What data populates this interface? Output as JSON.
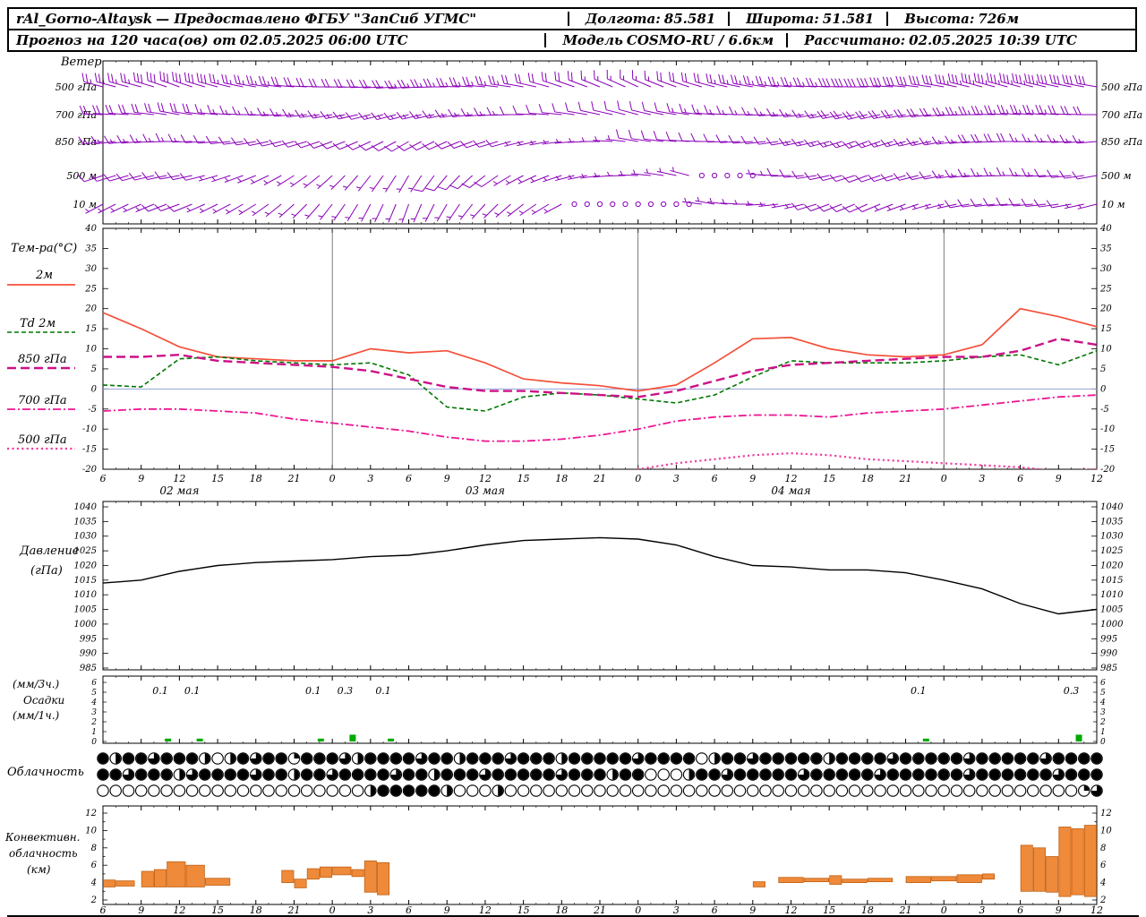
{
  "header": {
    "station": "rAl_Gorno-Altaysk",
    "provider": "— Предоставлено ФГБУ \"ЗапСиб УГМС\"",
    "lon_label": "Долгота:",
    "lon": "85.581",
    "lat_label": "Широта:",
    "lat": "51.581",
    "alt_label": "Высота:",
    "alt": "726м",
    "forecast_label": "Прогноз на 120 часа(ов) от",
    "forecast_time": "02.05.2025 06:00 UTC",
    "model_label": "Модель",
    "model": "COSMO-RU / 6.6км",
    "calc_label": "Рассчитано:",
    "calc_time": "02.05.2025 10:39 UTC"
  },
  "labels": {
    "wind_title": "Ветер",
    "temp_title": "Тем-ра(°C)",
    "pressure_line1": "Давление",
    "pressure_line2": "(гПа)",
    "precip_line1": "(мм/3ч.)",
    "precip_line2": "Осадки",
    "precip_line3": "(мм/1ч.)",
    "cloud_title": "Облачность",
    "conv_line1": "Конвективн.",
    "conv_line2": "облачность",
    "conv_line3": "(км)"
  },
  "colors": {
    "wind": "#8a00b8",
    "precip": "#00aa00",
    "convective": "#ef8a3a",
    "convective_border": "#c06012",
    "zero_line": "#95a2d8"
  },
  "x_axis": {
    "hour_labels": [
      "6",
      "9",
      "12",
      "15",
      "18",
      "21",
      "0",
      "3",
      "6",
      "9",
      "12",
      "15",
      "18",
      "21",
      "0",
      "3",
      "6",
      "9",
      "12",
      "15",
      "18",
      "21",
      "0",
      "3",
      "6",
      "9",
      "12"
    ],
    "day_labels": [
      {
        "text": "02 мая",
        "tick": 2
      },
      {
        "text": "03 мая",
        "tick": 10
      },
      {
        "text": "04 мая",
        "tick": 18
      }
    ]
  },
  "chart_data": [
    {
      "id": "wind",
      "type": "scatter",
      "title": "Ветер (барбы, узлы)",
      "x_step_hours": 3,
      "levels": [
        {
          "label": "500 гПа",
          "dirs_deg": [
            285,
            285,
            290,
            285,
            280,
            275,
            270,
            268,
            265,
            270,
            275,
            280,
            288,
            292,
            295,
            290,
            285,
            280,
            275,
            272,
            270,
            275,
            280,
            285,
            285,
            282,
            280
          ],
          "speeds_kt": [
            25,
            27,
            30,
            28,
            25,
            22,
            20,
            20,
            23,
            25,
            25,
            22,
            20,
            17,
            15,
            18,
            22,
            25,
            25,
            27,
            30,
            30,
            32,
            35,
            35,
            32,
            30
          ]
        },
        {
          "label": "700 гПа",
          "dirs_deg": [
            272,
            275,
            280,
            276,
            270,
            265,
            260,
            256,
            255,
            260,
            265,
            270,
            276,
            282,
            285,
            280,
            275,
            270,
            265,
            260,
            256,
            260,
            265,
            270,
            274,
            274,
            270
          ],
          "speeds_kt": [
            20,
            20,
            20,
            17,
            15,
            15,
            14,
            12,
            14,
            15,
            15,
            12,
            10,
            10,
            10,
            12,
            14,
            15,
            15,
            17,
            20,
            20,
            22,
            25,
            25,
            23,
            20
          ]
        },
        {
          "label": "850 гПа",
          "dirs_deg": [
            262,
            265,
            270,
            265,
            260,
            255,
            250,
            245,
            240,
            246,
            252,
            256,
            262,
            270,
            280,
            276,
            270,
            265,
            260,
            255,
            250,
            255,
            260,
            266,
            270,
            268,
            265
          ],
          "speeds_kt": [
            15,
            15,
            14,
            10,
            10,
            10,
            10,
            9,
            9,
            10,
            10,
            7,
            5,
            5,
            8,
            10,
            10,
            10,
            12,
            14,
            15,
            15,
            16,
            18,
            18,
            16,
            15
          ]
        },
        {
          "label": "500 м",
          "dirs_deg": [
            252,
            255,
            260,
            254,
            248,
            238,
            228,
            218,
            210,
            220,
            232,
            242,
            252,
            262,
            272,
            282,
            290,
            280,
            268,
            258,
            250,
            254,
            260,
            266,
            270,
            266,
            260
          ],
          "speeds_kt": [
            10,
            10,
            10,
            7,
            6,
            5,
            5,
            5,
            6,
            9,
            9,
            6,
            5,
            4,
            3,
            4,
            0,
            0,
            8,
            10,
            10,
            10,
            12,
            14,
            14,
            12,
            10
          ]
        },
        {
          "label": "10 м",
          "dirs_deg": [
            242,
            246,
            250,
            244,
            238,
            228,
            218,
            208,
            200,
            210,
            222,
            232,
            242,
            252,
            262,
            272,
            280,
            270,
            260,
            250,
            246,
            250,
            256,
            262,
            266,
            262,
            256
          ],
          "speeds_kt": [
            5,
            6,
            9,
            6,
            5,
            5,
            4,
            4,
            4,
            5,
            5,
            4,
            3,
            0,
            0,
            0,
            4,
            5,
            6,
            9,
            9,
            6,
            6,
            9,
            10,
            9,
            6
          ]
        }
      ]
    },
    {
      "id": "temperature",
      "type": "line",
      "title": "Тем-ра(°C)",
      "ylim": [
        -20,
        40
      ],
      "yticks": [
        40,
        35,
        30,
        25,
        20,
        15,
        10,
        5,
        0,
        -5,
        -10,
        -15,
        -20
      ],
      "x_step_hours": 3,
      "series": [
        {
          "name": "2м",
          "color": "#f4503a",
          "style": "solid",
          "values": [
            19,
            15,
            10.5,
            8,
            7.5,
            7,
            7,
            10,
            9,
            9.5,
            6.5,
            2.5,
            1.5,
            0.8,
            -0.5,
            1,
            6.5,
            12.5,
            12.8,
            10,
            8.5,
            8,
            8.5,
            11,
            20,
            18,
            15.5
          ]
        },
        {
          "name": "Td 2м",
          "color": "#007700",
          "style": "dashed",
          "values": [
            1,
            0.5,
            7.5,
            8,
            7,
            6.5,
            6,
            6.5,
            3.5,
            -4.5,
            -5.5,
            -2,
            -1,
            -1.5,
            -2.5,
            -3.5,
            -1.5,
            3,
            7,
            6.5,
            6.5,
            6.5,
            7,
            8,
            8.5,
            6,
            9.5
          ]
        },
        {
          "name": "850 гПа",
          "color": "#cc1188",
          "style": "longdash",
          "values": [
            8,
            8,
            8.5,
            7,
            6.5,
            6,
            5.5,
            4.5,
            2.5,
            0.5,
            -0.5,
            -0.5,
            -1,
            -1.5,
            -2,
            -0.5,
            2,
            4.5,
            6,
            6.5,
            7,
            7.5,
            8,
            8,
            9.5,
            12.5,
            11
          ]
        },
        {
          "name": "700 гПа",
          "color": "#ee1493",
          "style": "dashdot",
          "values": [
            -5.5,
            -5,
            -5,
            -5.5,
            -6,
            -7.5,
            -8.5,
            -9.5,
            -10.5,
            -12,
            -13,
            -13,
            -12.5,
            -11.5,
            -10,
            -8,
            -7,
            -6.5,
            -6.5,
            -7,
            -6,
            -5.5,
            -5,
            -4,
            -3,
            -2,
            -1.5
          ]
        },
        {
          "name": "500 гПа",
          "color": "#ee3fa0",
          "style": "dotted",
          "values": [
            -23,
            -23,
            -23,
            -23,
            -24,
            -24,
            -25,
            -25,
            -26,
            -26,
            -25,
            -24,
            -23,
            -22,
            -20,
            -18.5,
            -17.5,
            -16.5,
            -16,
            -16.5,
            -17.5,
            -18,
            -18.5,
            -19,
            -19.5,
            -20.5,
            -20
          ]
        }
      ]
    },
    {
      "id": "pressure",
      "type": "line",
      "ylabel": "Давление (гПа)",
      "ylim": [
        985,
        1040
      ],
      "yticks": [
        1040,
        1035,
        1030,
        1025,
        1020,
        1015,
        1010,
        1005,
        1000,
        995,
        990,
        985
      ],
      "x_step_hours": 3,
      "values": [
        1014,
        1015,
        1018,
        1020,
        1021,
        1021.5,
        1022,
        1023,
        1023.5,
        1025,
        1027,
        1028.5,
        1029,
        1029.5,
        1029,
        1027,
        1023,
        1020,
        1019.5,
        1018.5,
        1018.5,
        1017.5,
        1015,
        1012,
        1007,
        1003.5,
        1005
      ]
    },
    {
      "id": "precipitation",
      "type": "bar",
      "ylabel": "Осадки (мм/3ч., мм/1ч.)",
      "ylim": [
        0,
        6
      ],
      "yticks": [
        6,
        5,
        4,
        3,
        2,
        1,
        0
      ],
      "events": [
        {
          "hour": 4.5,
          "value": 0.1
        },
        {
          "hour": 7,
          "value": 0.1
        },
        {
          "hour": 16.5,
          "value": 0.1
        },
        {
          "hour": 19,
          "value": 0.3
        },
        {
          "hour": 22,
          "value": 0.1
        },
        {
          "hour": 64,
          "value": 0.1
        },
        {
          "hour": 76,
          "value": 0.3
        }
      ]
    },
    {
      "id": "cloud",
      "type": "heatmap",
      "title": "Облачность (октанты, 3 яруса, почасово)",
      "rows": [
        {
          "oktas": [
            8,
            4,
            8,
            8,
            6,
            8,
            8,
            8,
            4,
            0,
            4,
            8,
            6,
            8,
            8,
            2,
            8,
            8,
            8,
            6,
            4,
            8,
            8,
            8,
            8,
            6,
            8,
            8,
            4,
            8,
            8,
            8,
            6,
            8,
            8,
            8,
            4,
            8,
            8,
            8,
            8,
            8,
            6,
            8,
            8,
            8,
            8,
            0,
            4,
            8,
            8,
            6,
            8,
            8,
            8,
            8,
            8,
            4,
            8,
            8,
            8,
            8,
            6,
            8,
            8,
            8,
            8,
            8,
            6,
            8,
            8,
            8,
            8,
            8,
            6,
            8,
            8,
            8,
            8
          ]
        },
        {
          "oktas": [
            8,
            8,
            6,
            8,
            8,
            8,
            4,
            6,
            8,
            8,
            8,
            8,
            6,
            8,
            8,
            4,
            8,
            8,
            6,
            8,
            8,
            8,
            8,
            6,
            8,
            8,
            4,
            8,
            8,
            8,
            6,
            8,
            8,
            8,
            8,
            8,
            6,
            8,
            8,
            8,
            4,
            8,
            8,
            0,
            0,
            0,
            4,
            8,
            8,
            6,
            8,
            8,
            8,
            8,
            8,
            6,
            8,
            8,
            8,
            8,
            8,
            6,
            8,
            8,
            8,
            8,
            8,
            8,
            6,
            8,
            8,
            8,
            8,
            8,
            8,
            6,
            8,
            8,
            8
          ]
        },
        {
          "oktas": [
            0,
            0,
            0,
            0,
            0,
            0,
            0,
            0,
            0,
            0,
            0,
            0,
            0,
            0,
            0,
            0,
            0,
            0,
            0,
            0,
            0,
            4,
            8,
            8,
            8,
            8,
            8,
            4,
            0,
            0,
            0,
            4,
            0,
            0,
            0,
            0,
            0,
            0,
            0,
            0,
            0,
            0,
            0,
            0,
            0,
            0,
            0,
            0,
            0,
            0,
            0,
            0,
            0,
            0,
            0,
            0,
            0,
            0,
            0,
            0,
            0,
            0,
            0,
            0,
            0,
            0,
            0,
            0,
            0,
            0,
            0,
            0,
            0,
            0,
            0,
            0,
            0,
            2,
            6
          ]
        }
      ]
    },
    {
      "id": "convective",
      "type": "bar",
      "title": "Конвективная облачность (км)",
      "ylim": [
        2,
        12
      ],
      "yticks": [
        12,
        10,
        8,
        6,
        4,
        2
      ],
      "bars": [
        [
          0,
          1,
          3.5,
          4.3
        ],
        [
          1,
          2.5,
          3.6,
          4.2
        ],
        [
          3,
          4,
          3.5,
          5.3
        ],
        [
          4,
          5,
          3.5,
          5.5
        ],
        [
          5,
          6.5,
          3.5,
          6.4
        ],
        [
          6.5,
          8,
          3.5,
          6.0
        ],
        [
          8,
          10,
          3.7,
          4.5
        ],
        [
          14,
          15,
          4.0,
          5.4
        ],
        [
          15,
          16,
          3.4,
          4.4
        ],
        [
          16,
          17,
          4.4,
          5.6
        ],
        [
          17,
          18,
          4.6,
          5.8
        ],
        [
          18,
          19.5,
          4.9,
          5.8
        ],
        [
          19.5,
          20.5,
          4.7,
          5.5
        ],
        [
          20.5,
          21.5,
          2.9,
          6.5
        ],
        [
          21.5,
          22.5,
          2.6,
          6.3
        ],
        [
          51,
          52,
          3.5,
          4.1
        ],
        [
          53,
          55,
          4.0,
          4.6
        ],
        [
          55,
          57,
          4.1,
          4.5
        ],
        [
          57,
          58,
          3.8,
          4.8
        ],
        [
          58,
          60,
          4.0,
          4.4
        ],
        [
          60,
          62,
          4.1,
          4.5
        ],
        [
          63,
          65,
          4.0,
          4.7
        ],
        [
          65,
          67,
          4.2,
          4.7
        ],
        [
          67,
          69,
          4.0,
          4.9
        ],
        [
          69,
          70,
          4.4,
          5.0
        ],
        [
          72,
          73,
          3.0,
          8.3
        ],
        [
          73,
          74,
          3.0,
          8.0
        ],
        [
          74,
          75,
          2.9,
          7.0
        ],
        [
          75,
          76,
          2.4,
          10.4
        ],
        [
          76,
          77,
          2.6,
          10.2
        ],
        [
          77,
          78,
          2.4,
          10.6
        ]
      ]
    }
  ]
}
